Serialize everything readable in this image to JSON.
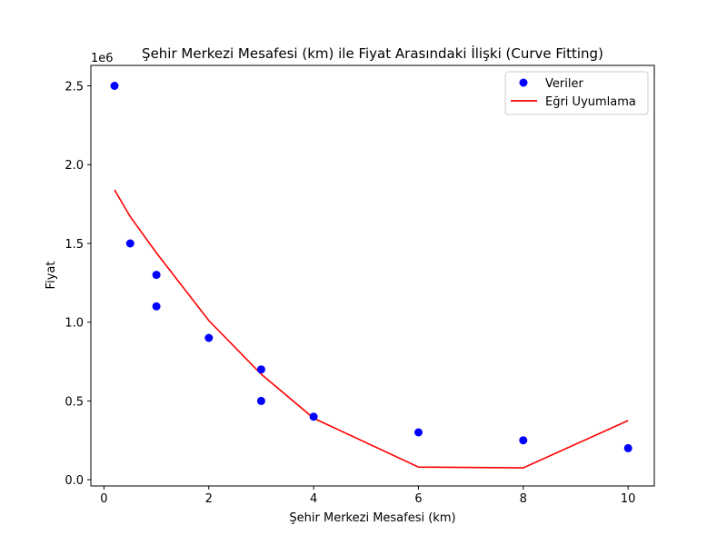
{
  "chart_data": {
    "type": "scatter",
    "title": "Şehir Merkezi Mesafesi (km) ile Fiyat Arasındaki İlişki (Curve Fitting)",
    "xlabel": "Şehir Merkezi Mesafesi (km)",
    "ylabel": "Fiyat",
    "y_offset_label": "1e6",
    "xlim": [
      -0.25,
      10.5
    ],
    "ylim": [
      -0.04,
      2.63
    ],
    "xticks": [
      0,
      2,
      4,
      6,
      8,
      10
    ],
    "xtick_labels": [
      "0",
      "2",
      "4",
      "6",
      "8",
      "10"
    ],
    "yticks": [
      0.0,
      0.5,
      1.0,
      1.5,
      2.0,
      2.5
    ],
    "ytick_labels": [
      "0.0",
      "0.5",
      "1.0",
      "1.5",
      "2.0",
      "2.5"
    ],
    "legend_position": "upper right",
    "grid": false,
    "series": [
      {
        "name": "Veriler",
        "kind": "scatter",
        "color": "#0000ff",
        "x": [
          0.2,
          0.5,
          1,
          1,
          2,
          3,
          3,
          4,
          6,
          8,
          10
        ],
        "y": [
          2.5,
          1.5,
          1.3,
          1.1,
          0.9,
          0.7,
          0.5,
          0.4,
          0.3,
          0.25,
          0.2
        ]
      },
      {
        "name": "Eğri Uyumlama",
        "kind": "line",
        "color": "#ff0000",
        "x": [
          0.2,
          0.5,
          1,
          2,
          3,
          4,
          6,
          8,
          10
        ],
        "y": [
          1.84,
          1.67,
          1.44,
          1.01,
          0.67,
          0.39,
          0.08,
          0.075,
          0.375
        ]
      }
    ]
  }
}
